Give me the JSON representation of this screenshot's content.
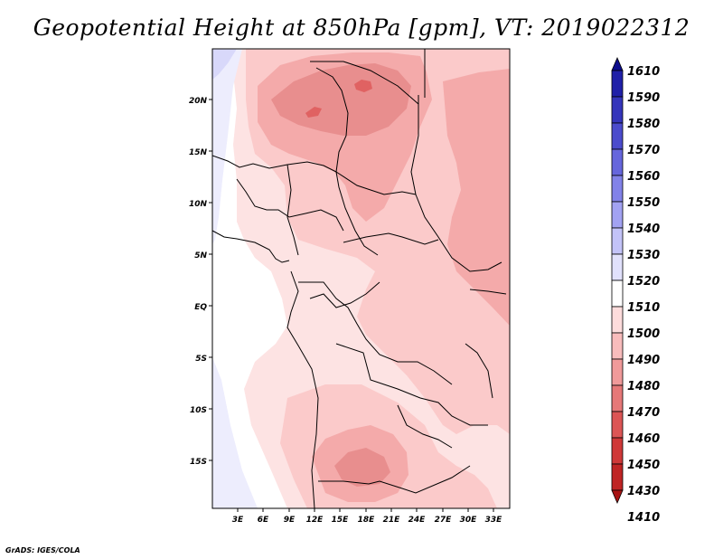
{
  "title": "Geopotential Height at 850hPa [gpm], VT: 2019022312",
  "footer": "GrADS: IGES/COLA",
  "map": {
    "lat_labels": [
      "20N",
      "15N",
      "10N",
      "5N",
      "EQ",
      "5S",
      "10S",
      "15S"
    ],
    "lon_labels": [
      "3E",
      "6E",
      "9E",
      "12E",
      "15E",
      "18E",
      "21E",
      "24E",
      "27E",
      "30E",
      "33E"
    ]
  },
  "colorbar": {
    "levels": [
      "1610",
      "1590",
      "1580",
      "1570",
      "1560",
      "1550",
      "1540",
      "1530",
      "1520",
      "1510",
      "1500",
      "1490",
      "1480",
      "1470",
      "1460",
      "1450",
      "1430",
      "1410"
    ],
    "colors": [
      "#0c0c8c",
      "#2020a8",
      "#3535bb",
      "#4b4bcc",
      "#6666dc",
      "#8282e8",
      "#a2a2f2",
      "#c3c3f8",
      "#e1e1fc",
      "#ffffff",
      "#fddcdc",
      "#f8bcbc",
      "#f09a9a",
      "#e67878",
      "#dc5555",
      "#cf3838",
      "#bf2424",
      "#a81414"
    ]
  },
  "field_colors": {
    "c1530": "#d8d8fa",
    "c1520": "#ededfd",
    "c1510": "#ffffff",
    "c1500": "#fde3e3",
    "c1490": "#fbcaca",
    "c1480": "#f4aaaa",
    "c1470": "#e88e8e",
    "c1460": "#e06262"
  }
}
